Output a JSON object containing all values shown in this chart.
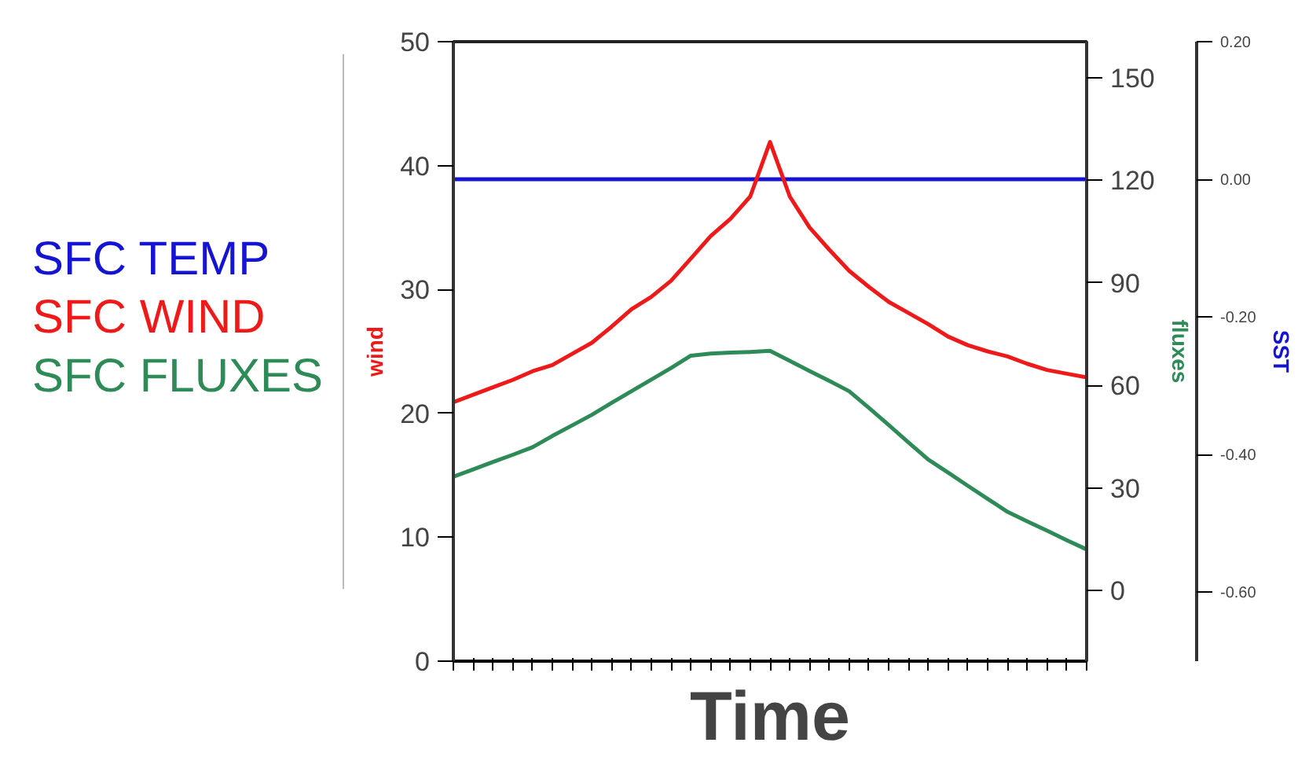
{
  "chart_data": {
    "type": "line",
    "xlabel": "Time",
    "ylabel": "wind",
    "y2label": "fluxes",
    "y3label": "SST",
    "tick_labels": "y",
    "categories": [
      null,
      null,
      null,
      null,
      null,
      null,
      null,
      null,
      null,
      null,
      null,
      null,
      null,
      null,
      null,
      null,
      null,
      null,
      null,
      null,
      null,
      null,
      null,
      null,
      null,
      null,
      null,
      null,
      null,
      null,
      null,
      null,
      null
    ],
    "ylim": [
      0,
      50
    ],
    "yticks": [
      0,
      10,
      20,
      30,
      40,
      50
    ],
    "y2lim": [
      -20.7,
      160.6
    ],
    "y2ticks": [
      0,
      30,
      60,
      90,
      120,
      150
    ],
    "y3lim": [
      -0.7,
      0.2
    ],
    "y3ticks": [
      {
        "value": -0.6,
        "label": "-0.60"
      },
      {
        "value": -0.4,
        "label": "-0.40"
      },
      {
        "value": -0.2,
        "label": "-0.20"
      },
      {
        "value": 0,
        "label": "0.00"
      },
      {
        "value": 0.2,
        "label": "0.20"
      }
    ],
    "series": [
      {
        "name": "SFC TEMP",
        "color": "#1414d2",
        "axis": "y3",
        "values": [
          0,
          0,
          0,
          0,
          0,
          0,
          0,
          0,
          0,
          0,
          0,
          0,
          0,
          0,
          0,
          0,
          0,
          0,
          0,
          0,
          0,
          0,
          0,
          0,
          0,
          0,
          0,
          0,
          0,
          0,
          0,
          0,
          0
        ]
      },
      {
        "name": "SFC WIND",
        "color": "#ee1a1a",
        "axis": "y",
        "values": [
          20.9,
          21.5,
          22.1,
          22.7,
          23.4,
          23.9,
          24.8,
          25.7,
          27.0,
          28.4,
          29.4,
          30.7,
          32.5,
          34.3,
          35.7,
          37.5,
          41.9,
          37.5,
          35.0,
          33.2,
          31.5,
          30.2,
          29.0,
          28.1,
          27.2,
          26.2,
          25.5,
          25.0,
          24.6,
          24.0,
          23.5,
          23.2,
          22.9
        ]
      },
      {
        "name": "SFC FLUXES",
        "color": "#2e8b57",
        "axis": "y2",
        "values": [
          33.3,
          35.4,
          37.6,
          39.7,
          41.9,
          45.2,
          48.3,
          51.4,
          54.9,
          58.3,
          61.7,
          65.1,
          68.7,
          69.3,
          69.6,
          69.8,
          70.1,
          67.2,
          64.2,
          61.3,
          58.3,
          53.4,
          48.4,
          43.3,
          38.3,
          34.5,
          30.6,
          26.8,
          23.0,
          20.2,
          17.5,
          14.7,
          12.0
        ]
      }
    ]
  }
}
